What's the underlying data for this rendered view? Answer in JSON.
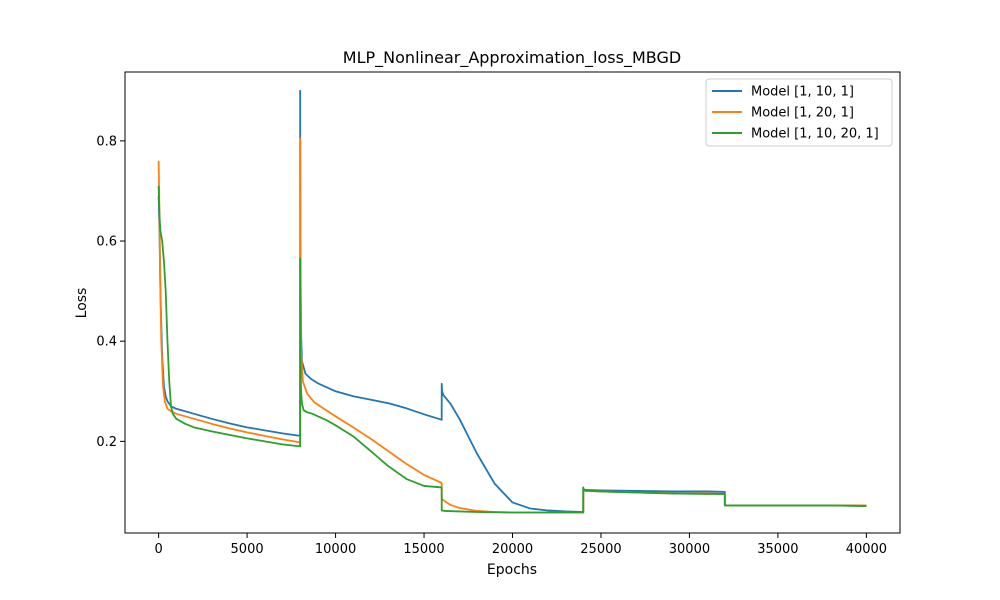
{
  "chart_data": {
    "type": "line",
    "title": "MLP_Nonlinear_Approximation_loss_MBGD",
    "xlabel": "Epochs",
    "ylabel": "Loss",
    "xlim": [
      -1900,
      41900
    ],
    "ylim": [
      0.017,
      0.9375
    ],
    "xticks": [
      0,
      5000,
      10000,
      15000,
      20000,
      25000,
      30000,
      35000,
      40000
    ],
    "yticks": [
      0.2,
      0.4,
      0.6,
      0.8
    ],
    "ytick_labels": [
      "0.2",
      "0.4",
      "0.6",
      "0.8"
    ],
    "grid": false,
    "legend_position": "top-right",
    "series": [
      {
        "name": "Model [1, 10, 1]",
        "color": "#1f77b4",
        "x": [
          0,
          50,
          100,
          200,
          300,
          400,
          500,
          700,
          1000,
          2000,
          3000,
          4000,
          5000,
          6000,
          7000,
          7999,
          8000,
          8010,
          8050,
          8100,
          8300,
          8600,
          9000,
          10000,
          11000,
          12000,
          13000,
          14000,
          15000,
          15999,
          16000,
          16020,
          16100,
          16500,
          17000,
          18000,
          19000,
          20000,
          21000,
          22000,
          23000,
          23999,
          24000,
          24020,
          24100,
          25000,
          27000,
          29000,
          31000,
          31999,
          32000,
          32100,
          34000,
          36000,
          38000,
          40000
        ],
        "y": [
          0.69,
          0.62,
          0.5,
          0.37,
          0.31,
          0.29,
          0.28,
          0.27,
          0.265,
          0.255,
          0.245,
          0.236,
          0.228,
          0.222,
          0.216,
          0.211,
          0.9,
          0.6,
          0.42,
          0.36,
          0.335,
          0.325,
          0.316,
          0.3,
          0.29,
          0.283,
          0.276,
          0.266,
          0.254,
          0.243,
          0.315,
          0.3,
          0.292,
          0.275,
          0.245,
          0.175,
          0.115,
          0.078,
          0.066,
          0.062,
          0.06,
          0.059,
          0.108,
          0.104,
          0.103,
          0.102,
          0.101,
          0.1,
          0.1,
          0.099,
          0.072,
          0.072,
          0.072,
          0.072,
          0.072,
          0.071
        ]
      },
      {
        "name": "Model [1, 20, 1]",
        "color": "#ff7f0e",
        "x": [
          0,
          30,
          80,
          150,
          250,
          350,
          500,
          700,
          1000,
          2000,
          3000,
          4000,
          5000,
          6000,
          7000,
          7999,
          8000,
          8010,
          8050,
          8150,
          8400,
          8800,
          9300,
          10000,
          11000,
          12000,
          13000,
          14000,
          15000,
          15999,
          16000,
          16200,
          16500,
          17000,
          18000,
          19000,
          20000,
          21000,
          22000,
          23000,
          23999,
          24000,
          24100,
          25000,
          27000,
          29000,
          31000,
          31999,
          32000,
          32100,
          34000,
          36000,
          38000,
          40000
        ],
        "y": [
          0.76,
          0.7,
          0.55,
          0.4,
          0.31,
          0.28,
          0.265,
          0.26,
          0.255,
          0.245,
          0.235,
          0.226,
          0.218,
          0.211,
          0.204,
          0.198,
          0.805,
          0.55,
          0.38,
          0.32,
          0.295,
          0.278,
          0.266,
          0.25,
          0.228,
          0.205,
          0.18,
          0.155,
          0.133,
          0.117,
          0.085,
          0.08,
          0.073,
          0.067,
          0.061,
          0.059,
          0.058,
          0.058,
          0.058,
          0.058,
          0.058,
          0.104,
          0.101,
          0.1,
          0.098,
          0.096,
          0.096,
          0.095,
          0.073,
          0.072,
          0.072,
          0.072,
          0.072,
          0.072
        ]
      },
      {
        "name": "Model [1, 10, 20, 1]",
        "color": "#2ca02c",
        "x": [
          0,
          50,
          100,
          200,
          300,
          400,
          500,
          600,
          700,
          800,
          1000,
          1500,
          2000,
          3000,
          4000,
          5000,
          6000,
          7000,
          7999,
          8000,
          8020,
          8050,
          8100,
          8200,
          8400,
          8700,
          9000,
          9500,
          10000,
          11000,
          12000,
          13000,
          14000,
          15000,
          15999,
          16000,
          16200,
          17000,
          18000,
          20000,
          22000,
          23999,
          24000,
          24100,
          25000,
          27000,
          29000,
          31000,
          31999,
          32000,
          32100,
          34000,
          36000,
          38000,
          40000
        ],
        "y": [
          0.71,
          0.65,
          0.62,
          0.6,
          0.56,
          0.5,
          0.4,
          0.32,
          0.27,
          0.255,
          0.245,
          0.235,
          0.228,
          0.22,
          0.213,
          0.206,
          0.2,
          0.194,
          0.19,
          0.565,
          0.35,
          0.3,
          0.275,
          0.262,
          0.258,
          0.255,
          0.25,
          0.242,
          0.232,
          0.21,
          0.18,
          0.15,
          0.125,
          0.111,
          0.108,
          0.062,
          0.061,
          0.06,
          0.059,
          0.058,
          0.058,
          0.058,
          0.106,
          0.102,
          0.1,
          0.098,
          0.096,
          0.095,
          0.095,
          0.073,
          0.072,
          0.072,
          0.072,
          0.072,
          0.071
        ]
      }
    ]
  }
}
